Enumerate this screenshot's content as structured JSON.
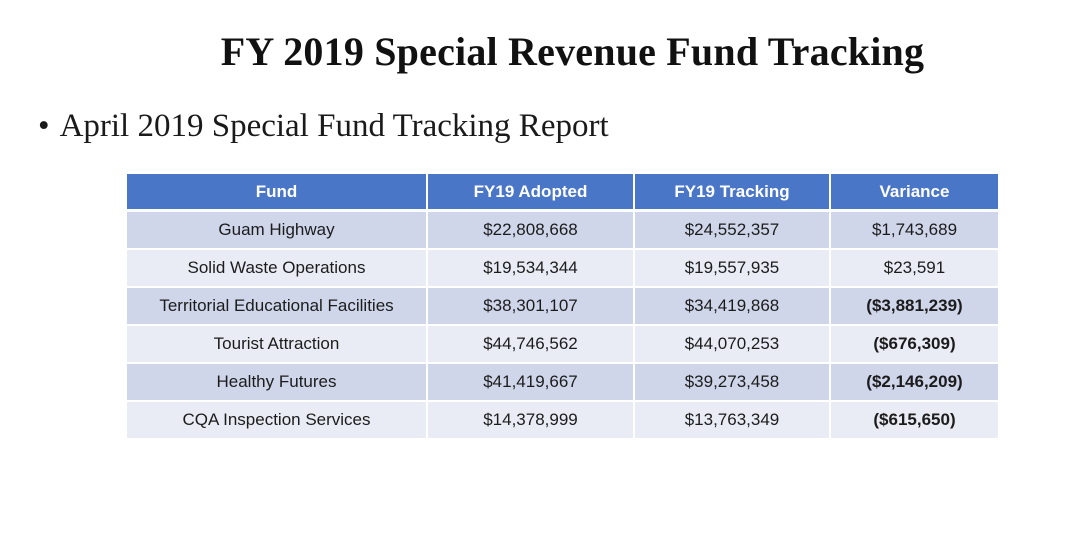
{
  "slide": {
    "title": "FY 2019 Special Revenue Fund Tracking",
    "bullet": "April 2019 Special Fund Tracking Report"
  },
  "table": {
    "headers": [
      "Fund",
      "FY19 Adopted",
      "FY19 Tracking",
      "Variance"
    ],
    "rows": [
      {
        "fund": "Guam Highway",
        "adopted": "$22,808,668",
        "tracking": "$24,552,357",
        "variance": "$1,743,689",
        "negative": false
      },
      {
        "fund": "Solid Waste Operations",
        "adopted": "$19,534,344",
        "tracking": "$19,557,935",
        "variance": "$23,591",
        "negative": false
      },
      {
        "fund": "Territorial Educational Facilities",
        "adopted": "$38,301,107",
        "tracking": "$34,419,868",
        "variance": "($3,881,239)",
        "negative": true
      },
      {
        "fund": "Tourist Attraction",
        "adopted": "$44,746,562",
        "tracking": "$44,070,253",
        "variance": "($676,309)",
        "negative": true
      },
      {
        "fund": "Healthy Futures",
        "adopted": "$41,419,667",
        "tracking": "$39,273,458",
        "variance": "($2,146,209)",
        "negative": true
      },
      {
        "fund": "CQA Inspection Services",
        "adopted": "$14,378,999",
        "tracking": "$13,763,349",
        "variance": "($615,650)",
        "negative": true
      }
    ]
  },
  "colors": {
    "header_bg": "#4a76c8",
    "row_odd": "#cfd6ea",
    "row_even": "#e9ecf5"
  }
}
